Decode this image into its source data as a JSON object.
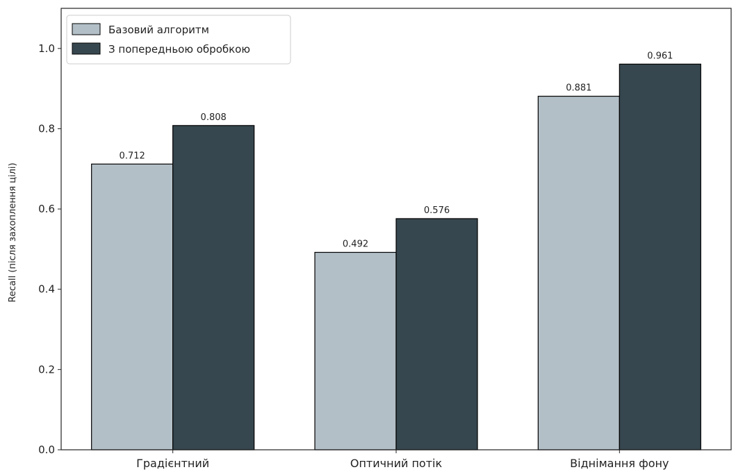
{
  "chart_data": {
    "type": "bar",
    "title": "",
    "xlabel": "",
    "ylabel": "Recall (після захоплення цілі)",
    "categories": [
      "Градієнтний",
      "Оптичний потік",
      "Віднімання фону"
    ],
    "series": [
      {
        "name": "Базовий алгоритм",
        "values": [
          0.712,
          0.492,
          0.881
        ],
        "value_labels": [
          "0.712",
          "0.492",
          "0.881"
        ],
        "color": "#b3bfc6"
      },
      {
        "name": "З попередньою обробкою",
        "values": [
          0.808,
          0.576,
          0.961
        ],
        "value_labels": [
          "0.808",
          "0.576",
          "0.961"
        ],
        "color": "#37474f"
      }
    ],
    "ylim": [
      0,
      1.1
    ],
    "yticks": [
      0,
      0.2,
      0.4,
      0.6,
      0.8,
      1.0
    ],
    "ytick_labels": [
      "0.0",
      "0.2",
      "0.4",
      "0.6",
      "0.8",
      "1.0"
    ],
    "grid": false,
    "legend_position": "top-left",
    "bar_edge_color": "#000000"
  }
}
